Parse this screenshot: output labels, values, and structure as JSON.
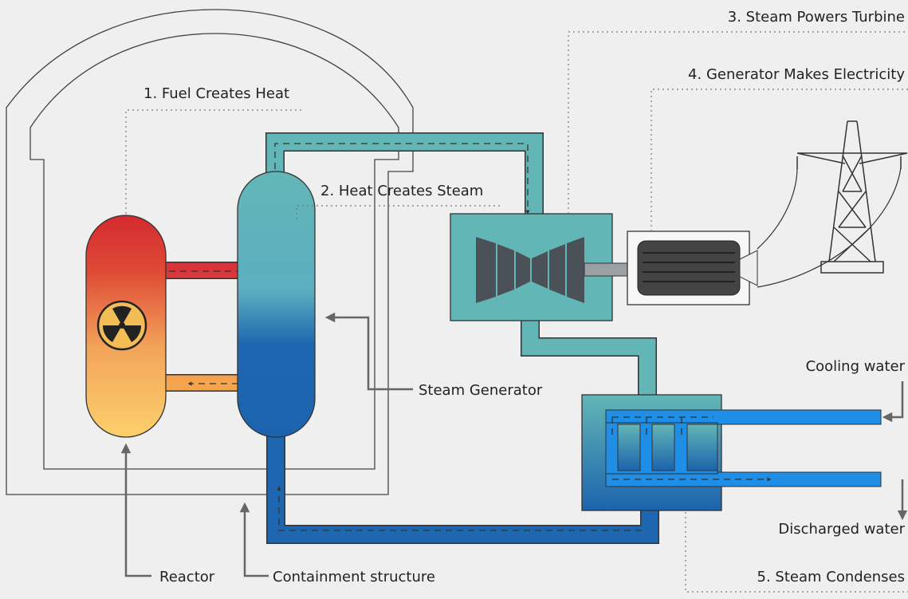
{
  "steps": [
    "1. Fuel Creates Heat",
    "2. Heat Creates Steam",
    "3. Steam Powers Turbine",
    "4. Generator Makes Electricity",
    "5. Steam Condenses"
  ],
  "components": [
    "Steam Generator",
    "Reactor",
    "Containment structure",
    "Cooling water",
    "Discharged water"
  ]
}
